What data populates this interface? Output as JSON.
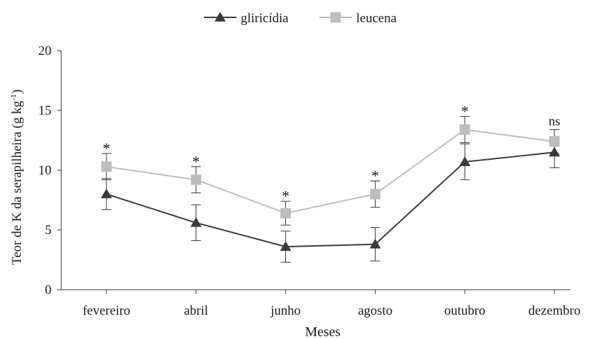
{
  "chart_data": {
    "type": "line",
    "xlabel": "Meses",
    "ylabel": "Teor de K da serapilheira (g kg",
    "ylabel_sup": "-1",
    "ylabel_close": ")",
    "ylim": [
      0,
      20
    ],
    "yticks": [
      0,
      5,
      10,
      15,
      20
    ],
    "categories": [
      "fevereiro",
      "abril",
      "junho",
      "agosto",
      "outubro",
      "dezembro"
    ],
    "grid": false,
    "legend_position": "top-center",
    "series": [
      {
        "name": "gliricídia",
        "marker": "triangle",
        "color": "#3a3a3a",
        "values": [
          8.0,
          5.6,
          3.6,
          3.8,
          10.7,
          11.5
        ],
        "errors": [
          1.3,
          1.5,
          1.3,
          1.4,
          1.5,
          1.3
        ]
      },
      {
        "name": "leucena",
        "marker": "square",
        "color": "#bdbdbd",
        "values": [
          10.3,
          9.2,
          6.4,
          8.0,
          13.4,
          12.4
        ],
        "errors": [
          1.1,
          1.1,
          1.0,
          1.1,
          1.1,
          1.0
        ]
      }
    ],
    "annotations": [
      "*",
      "*",
      "*",
      "*",
      "*",
      "ns"
    ]
  }
}
